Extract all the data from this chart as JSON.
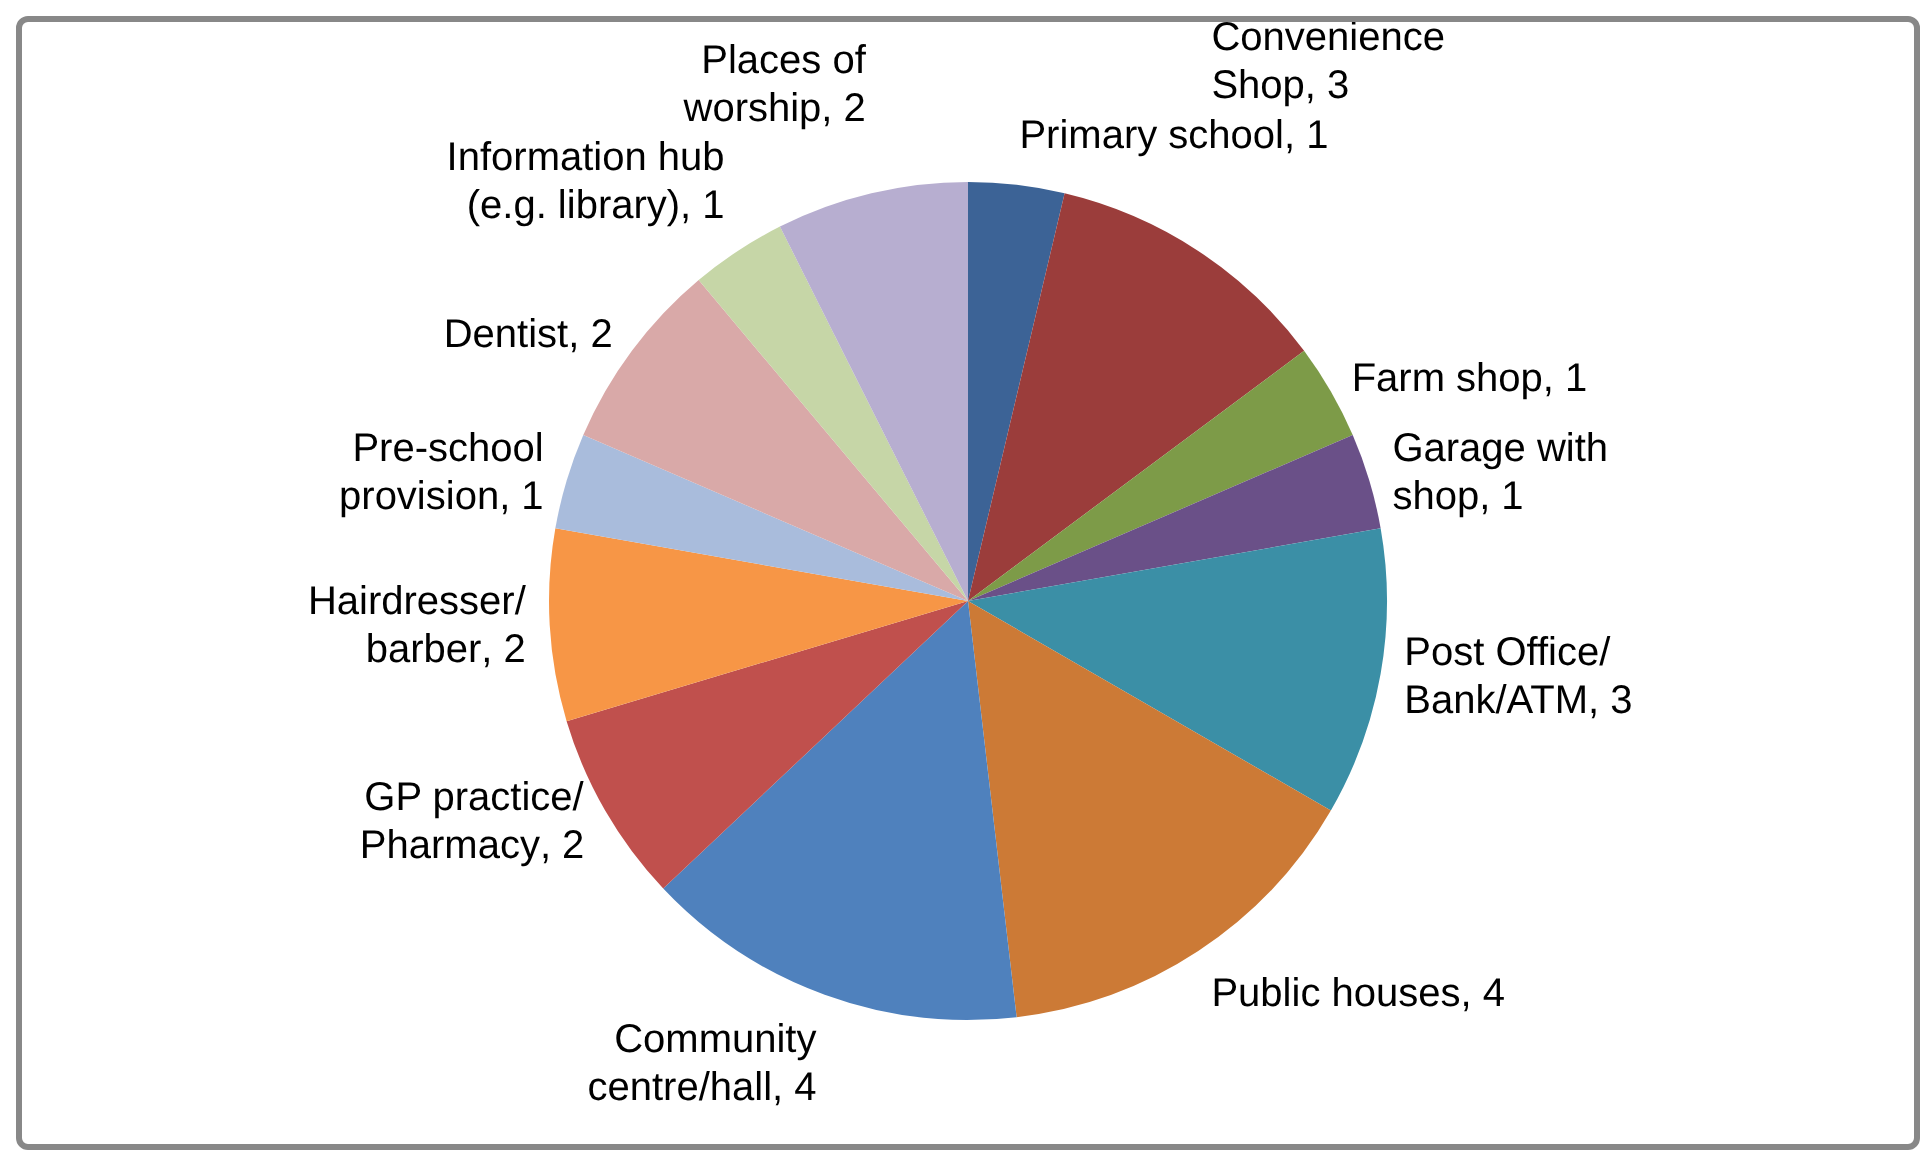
{
  "chart_data": {
    "type": "pie",
    "categories": [
      "Primary school",
      "Convenience Shop",
      "Farm shop",
      "Garage with shop",
      "Post Office/Bank/ATM",
      "Public houses",
      "Community centre/hall",
      "GP practice/Pharmacy",
      "Hairdresser/barber",
      "Pre-school provision",
      "Dentist",
      "Information hub (e.g. library)",
      "Places of worship"
    ],
    "values": [
      1,
      3,
      1,
      1,
      3,
      4,
      4,
      2,
      2,
      1,
      2,
      1,
      2
    ],
    "colors": [
      "#3c6396",
      "#9b3d3b",
      "#7d9b48",
      "#6a5088",
      "#3b8fa6",
      "#cc7a36",
      "#4f81bd",
      "#c0504d",
      "#f79646",
      "#a9bcdc",
      "#d9a9a8",
      "#c6d6a7",
      "#b7aed0"
    ],
    "value_labels": [
      ", 1",
      ", 3",
      ", 1",
      ", 1",
      ", 3",
      ", 4",
      ", 4",
      ", 2",
      ", 2",
      ", 1",
      ", 2",
      ", 1",
      ", 2"
    ],
    "legend": false
  }
}
